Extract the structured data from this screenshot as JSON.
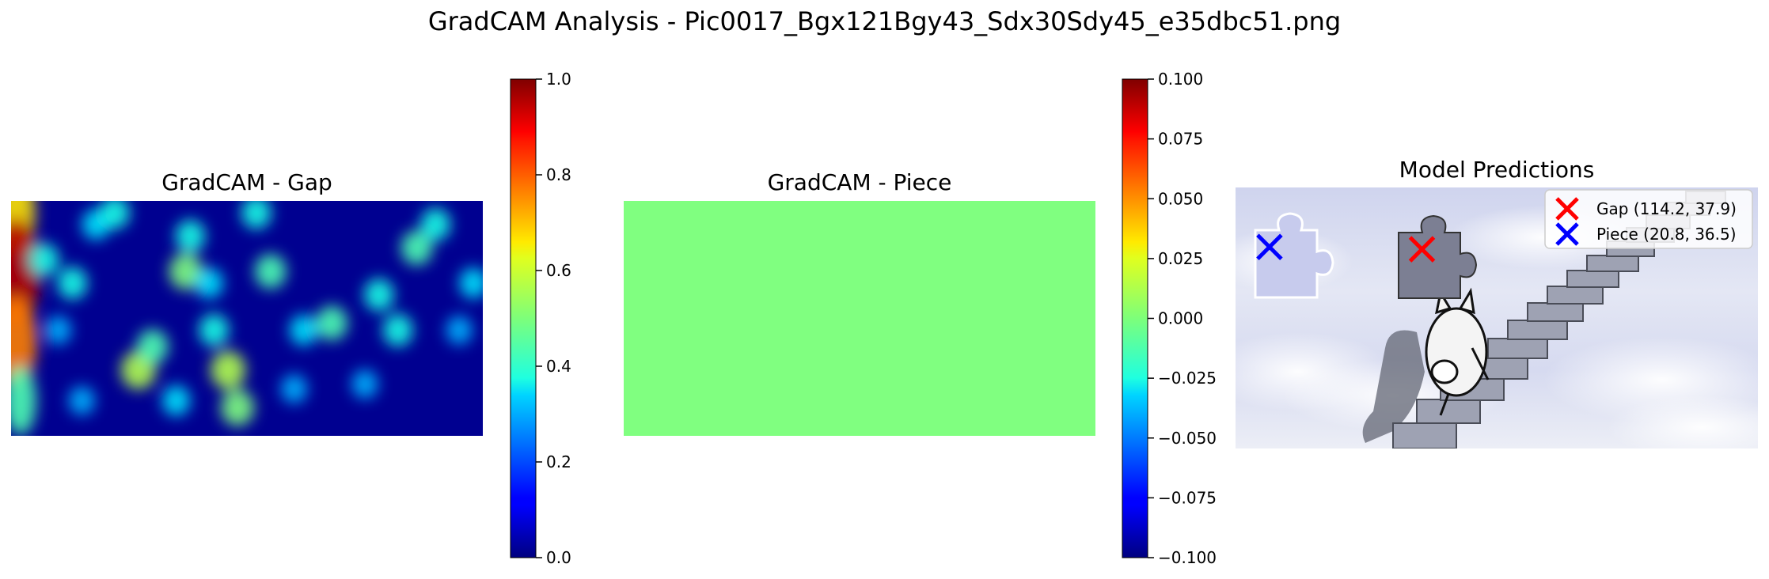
{
  "suptitle": "GradCAM Analysis - Pic0017_Bgx121Bgy43_Sdx30Sdy45_e35dbc51.png",
  "chart_data": [
    {
      "type": "heatmap",
      "title": "GradCAM - Gap",
      "colormap": "jet",
      "colorbar": {
        "range": [
          0.0,
          1.0
        ],
        "ticks": [
          "0.0",
          "0.2",
          "0.4",
          "0.6",
          "0.8",
          "1.0"
        ]
      },
      "hotspots": [
        {
          "x": 0.01,
          "y": 0.05,
          "v": 0.65
        },
        {
          "x": 0.01,
          "y": 0.3,
          "v": 0.95
        },
        {
          "x": 0.01,
          "y": 0.6,
          "v": 0.75
        },
        {
          "x": 0.02,
          "y": 0.85,
          "v": 0.45
        },
        {
          "x": 0.07,
          "y": 0.25,
          "v": 0.4
        },
        {
          "x": 0.13,
          "y": 0.35,
          "v": 0.4
        },
        {
          "x": 0.1,
          "y": 0.55,
          "v": 0.3
        },
        {
          "x": 0.18,
          "y": 0.1,
          "v": 0.35
        },
        {
          "x": 0.22,
          "y": 0.05,
          "v": 0.4
        },
        {
          "x": 0.38,
          "y": 0.15,
          "v": 0.4
        },
        {
          "x": 0.37,
          "y": 0.3,
          "v": 0.5
        },
        {
          "x": 0.42,
          "y": 0.35,
          "v": 0.35
        },
        {
          "x": 0.27,
          "y": 0.72,
          "v": 0.55
        },
        {
          "x": 0.3,
          "y": 0.62,
          "v": 0.45
        },
        {
          "x": 0.46,
          "y": 0.72,
          "v": 0.55
        },
        {
          "x": 0.48,
          "y": 0.88,
          "v": 0.5
        },
        {
          "x": 0.43,
          "y": 0.55,
          "v": 0.4
        },
        {
          "x": 0.55,
          "y": 0.3,
          "v": 0.45
        },
        {
          "x": 0.52,
          "y": 0.05,
          "v": 0.4
        },
        {
          "x": 0.62,
          "y": 0.55,
          "v": 0.35
        },
        {
          "x": 0.68,
          "y": 0.52,
          "v": 0.45
        },
        {
          "x": 0.78,
          "y": 0.4,
          "v": 0.4
        },
        {
          "x": 0.82,
          "y": 0.55,
          "v": 0.4
        },
        {
          "x": 0.86,
          "y": 0.2,
          "v": 0.45
        },
        {
          "x": 0.9,
          "y": 0.1,
          "v": 0.4
        },
        {
          "x": 0.75,
          "y": 0.78,
          "v": 0.3
        },
        {
          "x": 0.95,
          "y": 0.55,
          "v": 0.3
        },
        {
          "x": 0.98,
          "y": 0.35,
          "v": 0.35
        },
        {
          "x": 0.6,
          "y": 0.8,
          "v": 0.3
        },
        {
          "x": 0.35,
          "y": 0.85,
          "v": 0.35
        },
        {
          "x": 0.15,
          "y": 0.85,
          "v": 0.3
        }
      ]
    },
    {
      "type": "heatmap",
      "title": "GradCAM - Piece",
      "colormap": "jet",
      "uniform_value": 0.0,
      "colorbar": {
        "range": [
          -0.1,
          0.1
        ],
        "ticks": [
          "−0.100",
          "−0.075",
          "−0.050",
          "−0.025",
          "0.000",
          "0.025",
          "0.050",
          "0.075",
          "0.100"
        ]
      }
    },
    {
      "type": "scatter",
      "title": "Model Predictions",
      "background": "puzzle-image-stairs-and-cat",
      "xlim": [
        0,
        320
      ],
      "ylim": [
        0,
        160
      ],
      "series": [
        {
          "name": "Gap (114.2, 37.9)",
          "x": 114.2,
          "y": 37.9,
          "color": "#ff0000",
          "marker": "x"
        },
        {
          "name": "Piece (20.8, 36.5)",
          "x": 20.8,
          "y": 36.5,
          "color": "#0000ff",
          "marker": "x"
        }
      ]
    }
  ]
}
